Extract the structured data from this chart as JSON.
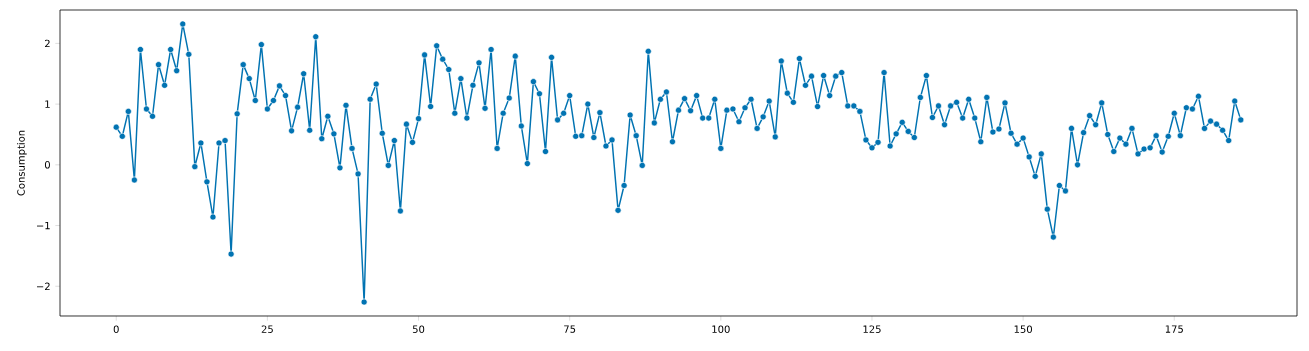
{
  "chart_data": {
    "type": "line",
    "ylabel": "Consumption",
    "color": "#0173b2",
    "marker": "circle",
    "x": [
      0,
      1,
      2,
      3,
      4,
      5,
      6,
      7,
      8,
      9,
      10,
      11,
      12,
      13,
      14,
      15,
      16,
      17,
      18,
      19,
      20,
      21,
      22,
      23,
      24,
      25,
      26,
      27,
      28,
      29,
      30,
      31,
      32,
      33,
      34,
      35,
      36,
      37,
      38,
      39,
      40,
      41,
      42,
      43,
      44,
      45,
      46,
      47,
      48,
      49,
      50,
      51,
      52,
      53,
      54,
      55,
      56,
      57,
      58,
      59,
      60,
      61,
      62,
      63,
      64,
      65,
      66,
      67,
      68,
      69,
      70,
      71,
      72,
      73,
      74,
      75,
      76,
      77,
      78,
      79,
      80,
      81,
      82,
      83,
      84,
      85,
      86,
      87,
      88,
      89,
      90,
      91,
      92,
      93,
      94,
      95,
      96,
      97,
      98,
      99,
      100,
      101,
      102,
      103,
      104,
      105,
      106,
      107,
      108,
      109,
      110,
      111,
      112,
      113,
      114,
      115,
      116,
      117,
      118,
      119,
      120,
      121,
      122,
      123,
      124,
      125,
      126,
      127,
      128,
      129,
      130,
      131,
      132,
      133,
      134,
      135,
      136,
      137,
      138,
      139,
      140,
      141,
      142,
      143,
      144,
      145,
      146,
      147,
      148,
      149,
      150,
      151,
      152,
      153,
      154,
      155,
      156,
      157,
      158,
      159,
      160,
      161,
      162,
      163,
      164,
      165,
      166,
      167,
      168,
      169,
      170,
      171,
      172,
      173,
      174,
      175,
      176,
      177,
      178,
      179,
      180,
      181,
      182,
      183,
      184,
      185,
      186
    ],
    "values": [
      0.62,
      0.47,
      0.88,
      -0.25,
      1.9,
      0.92,
      0.8,
      1.65,
      1.31,
      1.9,
      1.55,
      2.32,
      1.82,
      -0.03,
      0.36,
      -0.28,
      -0.86,
      0.36,
      0.4,
      -1.47,
      0.84,
      1.65,
      1.42,
      1.06,
      1.98,
      0.92,
      1.06,
      1.3,
      1.14,
      0.56,
      0.95,
      1.5,
      0.57,
      2.11,
      0.43,
      0.8,
      0.51,
      -0.05,
      0.98,
      0.27,
      -0.15,
      -2.26,
      1.08,
      1.33,
      0.52,
      -0.01,
      0.4,
      -0.76,
      0.67,
      0.37,
      0.76,
      1.81,
      0.96,
      1.96,
      1.74,
      1.57,
      0.85,
      1.42,
      0.77,
      1.31,
      1.68,
      0.93,
      1.9,
      0.27,
      0.85,
      1.1,
      1.79,
      0.64,
      0.02,
      1.37,
      1.17,
      0.22,
      1.77,
      0.74,
      0.85,
      1.14,
      0.47,
      0.48,
      1.0,
      0.45,
      0.86,
      0.31,
      0.41,
      -0.75,
      -0.34,
      0.82,
      0.48,
      -0.01,
      1.87,
      0.69,
      1.08,
      1.2,
      0.38,
      0.9,
      1.09,
      0.89,
      1.14,
      0.77,
      0.77,
      1.08,
      0.27,
      0.9,
      0.92,
      0.71,
      0.94,
      1.08,
      0.6,
      0.79,
      1.05,
      0.46,
      1.71,
      1.18,
      1.03,
      1.75,
      1.31,
      1.46,
      0.96,
      1.47,
      1.14,
      1.46,
      1.52,
      0.97,
      0.97,
      0.88,
      0.41,
      0.28,
      0.37,
      1.52,
      0.31,
      0.51,
      0.7,
      0.55,
      0.45,
      1.11,
      1.47,
      0.78,
      0.97,
      0.66,
      0.97,
      1.03,
      0.77,
      1.08,
      0.77,
      0.38,
      1.11,
      0.54,
      0.59,
      1.02,
      0.52,
      0.34,
      0.44,
      0.13,
      -0.19,
      0.18,
      -0.73,
      -1.19,
      -0.34,
      -0.43,
      0.6,
      0.0,
      0.53,
      0.81,
      0.66,
      1.02,
      0.5,
      0.22,
      0.44,
      0.34,
      0.6,
      0.18,
      0.26,
      0.28,
      0.48,
      0.21,
      0.47,
      0.85,
      0.48,
      0.94,
      0.92,
      1.13,
      0.6,
      0.72,
      0.67,
      0.57,
      0.4,
      1.05,
      0.74
    ],
    "xlim": [
      -9.3,
      195.3
    ],
    "ylim": [
      -2.49,
      2.55
    ],
    "xticks": [
      0,
      25,
      50,
      75,
      100,
      125,
      150,
      175
    ],
    "yticks": [
      {
        "value": -2,
        "label": "−2"
      },
      {
        "value": -1,
        "label": "−1"
      },
      0,
      1,
      2
    ]
  }
}
